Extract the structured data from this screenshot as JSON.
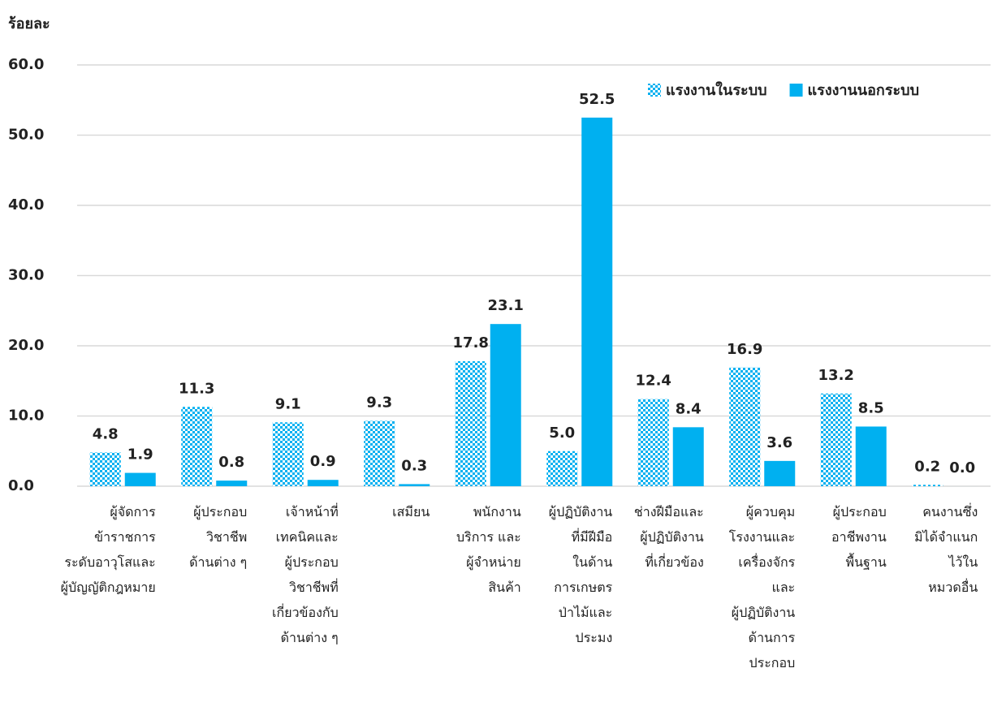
{
  "chart_data": {
    "type": "bar",
    "y_label": "ร้อยละ",
    "categories": [
      "ผู้จัดการ\nข้าราชการ\nระดับอาวุโสและ\nผู้บัญญัติกฎหมาย",
      "ผู้ประกอบ\nวิชาชีพ\nด้านต่าง ๆ",
      "เจ้าหน้าที่\nเทคนิคและ\nผู้ประกอบ\nวิชาชีพที่\nเกี่ยวข้องกับ\nด้านต่าง ๆ",
      "เสมียน",
      "พนักงาน\nบริการ และ\nผู้จำหน่าย\nสินค้า",
      "ผู้ปฏิบัติงาน\nที่มีฝีมือ\nในด้าน\nการเกษตร\nป่าไม้และ\nประมง",
      "ช่างฝีมือและ\nผู้ปฏิบัติงาน\nที่เกี่ยวข้อง",
      "ผู้ควบคุม\nโรงงานและ\nเครื่องจักร\nและ\nผู้ปฏิบัติงาน\nด้านการ\nประกอบ",
      "ผู้ประกอบ\nอาชีพงาน\nพื้นฐาน",
      "คนงานซึ่ง\nมิได้จำแนก\nไว้ใน\nหมวดอื่น"
    ],
    "series": [
      {
        "name": "แรงงานในระบบ",
        "color": "#00b0f0",
        "pattern": "checker",
        "values": [
          4.8,
          11.3,
          9.1,
          9.3,
          17.8,
          5.0,
          12.4,
          16.9,
          13.2,
          0.2
        ],
        "value_labels": [
          "4.8",
          "11.3",
          "9.1",
          "9.3",
          "17.8",
          "5.0",
          "12.4",
          "16.9",
          "13.2",
          "0.2"
        ]
      },
      {
        "name": "แรงงานนอกระบบ",
        "color": "#00b0f0",
        "values": [
          1.9,
          0.8,
          0.9,
          0.3,
          23.1,
          52.5,
          8.4,
          3.6,
          8.5,
          0.0
        ],
        "value_labels": [
          "1.9",
          "0.8",
          "0.9",
          "0.3",
          "23.1",
          "52.5",
          "8.4",
          "3.6",
          "8.5",
          "0.0"
        ]
      }
    ],
    "ylim": [
      0,
      60
    ],
    "yticks": [
      {
        "value": 0,
        "label": "0.0"
      },
      {
        "value": 10,
        "label": "10.0"
      },
      {
        "value": 20,
        "label": "20.0"
      },
      {
        "value": 30,
        "label": "30.0"
      },
      {
        "value": 40,
        "label": "40.0"
      },
      {
        "value": 50,
        "label": "50.0"
      },
      {
        "value": 60,
        "label": "60.0"
      }
    ],
    "grid": true,
    "legend": "top-right"
  }
}
